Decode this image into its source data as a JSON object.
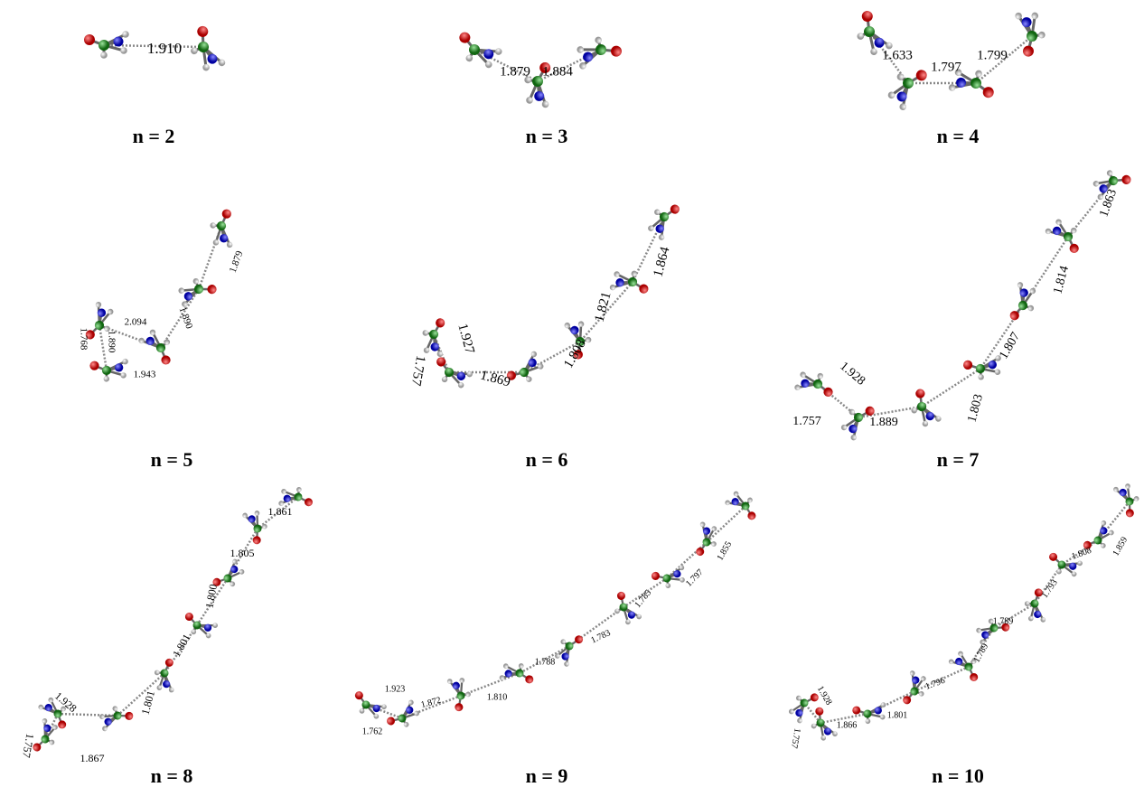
{
  "panels": [
    {
      "label": "n = 2",
      "distances": [
        "1.910"
      ]
    },
    {
      "label": "n = 3",
      "distances": [
        "1.879",
        "1.884"
      ]
    },
    {
      "label": "n = 4",
      "distances": [
        "1.633",
        "1.797",
        "1.799"
      ]
    },
    {
      "label": "n = 5",
      "distances": [
        "1.879",
        "1.890",
        "2.094",
        "1.890",
        "1.768",
        "1.943"
      ]
    },
    {
      "label": "n = 6",
      "distances": [
        "1.864",
        "1.821",
        "1.927",
        "1.757",
        "1.808",
        "1.869"
      ]
    },
    {
      "label": "n = 7",
      "distances": [
        "1.863",
        "1.814",
        "1.807",
        "1.928",
        "1.803",
        "1.757",
        "1.889"
      ]
    },
    {
      "label": "n = 8",
      "distances": [
        "1.861",
        "1.805",
        "1.800",
        "1.801",
        "1.801",
        "1.928",
        "1.867",
        "1.757"
      ]
    },
    {
      "label": "n = 9",
      "distances": [
        "1.855",
        "1.797",
        "1.785",
        "1.783",
        "1.788",
        "1.810",
        "1.872",
        "1.923",
        "1.762"
      ]
    },
    {
      "label": "n = 10",
      "distances": [
        "1.859",
        "1.808",
        "1.793",
        "1.789",
        "1.789",
        "1.796",
        "1.801",
        "1.866",
        "1.928",
        "1.757"
      ]
    }
  ]
}
